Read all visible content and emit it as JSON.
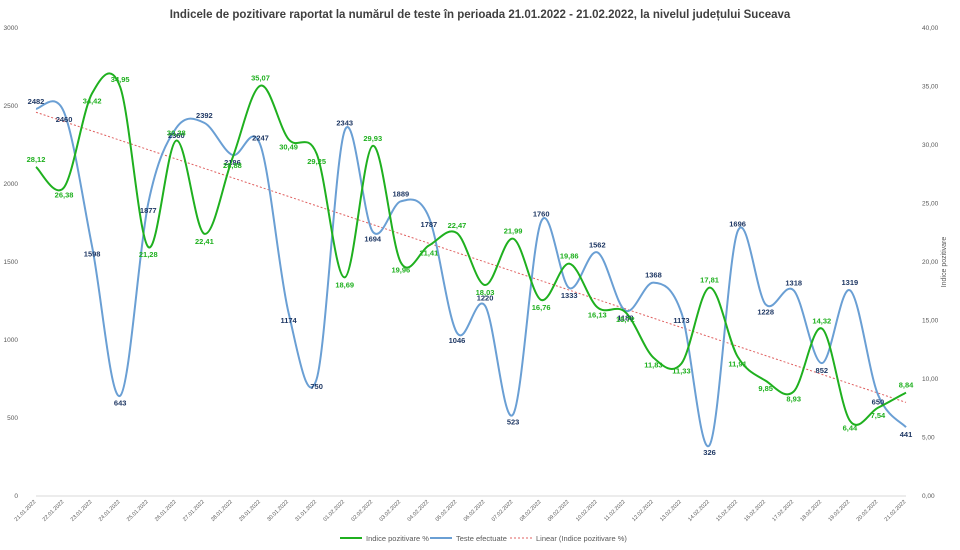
{
  "chart_data": {
    "type": "line",
    "title": "Indicele de pozitivare  raportat la numărul  de teste în perioada  21.01.2022 - 21.02.2022, la nivelul județului  Suceava",
    "categories": [
      "21.01.2022",
      "22.01.2022",
      "23.01.2022",
      "24.01.2022",
      "25.01.2022",
      "26.01.2022",
      "27.01.2022",
      "28.01.2022",
      "29.01.2022",
      "30.01.2022",
      "31.01.2022",
      "01.02.2022",
      "02.02.2022",
      "03.02.2022",
      "04.02.2022",
      "05.02.2022",
      "06.02.2022",
      "07.02.2022",
      "08.02.2022",
      "09.02.2022",
      "10.02.2022",
      "11.02.2022",
      "12.02.2022",
      "13.02.2022",
      "14.02.2022",
      "15.02.2022",
      "16.02.2022",
      "17.02.2022",
      "18.02.2022",
      "19.02.2022",
      "20.02.2022",
      "21.02.2022"
    ],
    "left_axis": {
      "min": 0,
      "max": 3000,
      "ticks": [
        "0",
        "500",
        "1000",
        "1500",
        "2000",
        "2500",
        "3000"
      ]
    },
    "right_axis": {
      "min": 0,
      "max": 40,
      "label": "Indice pozitivare",
      "ticks": [
        "0,00",
        "5,00",
        "10,00",
        "15,00",
        "20,00",
        "25,00",
        "30,00",
        "35,00",
        "40,00"
      ]
    },
    "series": [
      {
        "name": "Indice pozitivare %",
        "axis": "right",
        "color": "#1fb01f",
        "values": [
          28.12,
          26.38,
          34.42,
          34.95,
          21.28,
          30.38,
          22.41,
          28.88,
          35.07,
          30.49,
          29.25,
          18.69,
          29.93,
          19.96,
          21.41,
          22.47,
          18.03,
          21.99,
          16.76,
          19.86,
          16.13,
          15.72,
          11.83,
          11.33,
          17.81,
          11.91,
          9.85,
          8.93,
          14.32,
          6.44,
          7.54,
          8.84
        ],
        "labels": [
          "28,12",
          "26,38",
          "34,42",
          "34,95",
          "21,28",
          "30,38",
          "22,41",
          "28,88",
          "35,07",
          "30,49",
          "29,25",
          "18,69",
          "29,93",
          "19,96",
          "21,41",
          "22,47",
          "18,03",
          "21,99",
          "16,76",
          "19,86",
          "16,13",
          "15,72",
          "11,83",
          "11,33",
          "17,81",
          "11,91",
          "9,85",
          "8,93",
          "14,32",
          "6,44",
          "7,54",
          "8,84"
        ]
      },
      {
        "name": "Teste efectuate",
        "axis": "left",
        "color": "#6a9fd4",
        "values": [
          2482,
          2460,
          1598,
          643,
          1877,
          2360,
          2392,
          2186,
          2247,
          1174,
          750,
          2343,
          1694,
          1889,
          1787,
          1046,
          1220,
          523,
          1760,
          1333,
          1562,
          1188,
          1368,
          1173,
          326,
          1696,
          1228,
          1318,
          852,
          1319,
          650,
          441
        ],
        "labels": [
          "2482",
          "2460",
          "1598",
          "643",
          "1877",
          "2360",
          "2392",
          "2186",
          "2247",
          "1174",
          "750",
          "2343",
          "1694",
          "1889",
          "1787",
          "1046",
          "1220",
          "523",
          "1760",
          "1333",
          "1562",
          "1188",
          "1368",
          "1173",
          "326",
          "1696",
          "1228",
          "1318",
          "852",
          "1319",
          "650",
          "441"
        ]
      }
    ],
    "trendline": {
      "name": "Linear (Indice pozitivare %)",
      "color": "#e06060",
      "start": 32.8,
      "end": 8.0
    },
    "legend": {
      "position": "bottom"
    },
    "grid": false
  }
}
